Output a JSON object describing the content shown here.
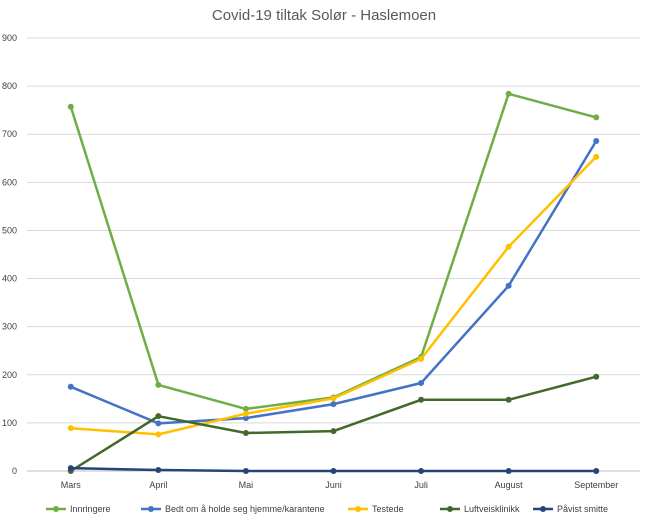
{
  "chart_data": {
    "type": "line",
    "title": "Covid-19 tiltak Solør - Haslemoen",
    "xlabel": "",
    "ylabel": "",
    "ylim": [
      0,
      900
    ],
    "yticks": [
      0,
      100,
      200,
      300,
      400,
      500,
      600,
      700,
      800,
      900
    ],
    "categories": [
      "Mars",
      "April",
      "Mai",
      "Juni",
      "Juli",
      "August",
      "September"
    ],
    "grid": true,
    "legend_position": "bottom",
    "series": [
      {
        "name": "Innringere",
        "color": "#70ad47",
        "values": [
          757,
          179,
          129,
          153,
          237,
          784,
          735
        ]
      },
      {
        "name": "Bedt om å holde seg hjemme/karantene",
        "color": "#4472c4",
        "values": [
          175,
          99,
          110,
          139,
          183,
          385,
          686
        ]
      },
      {
        "name": "Testede",
        "color": "#ffc000",
        "values": [
          89,
          76,
          119,
          151,
          233,
          466,
          653
        ]
      },
      {
        "name": "Luftveisklinikk",
        "color": "#43682b",
        "values": [
          0,
          114,
          79,
          83,
          148,
          148,
          196
        ]
      },
      {
        "name": "Påvist smitte",
        "color": "#264478",
        "values": [
          6,
          2,
          0,
          0,
          0,
          0,
          0
        ]
      }
    ]
  }
}
